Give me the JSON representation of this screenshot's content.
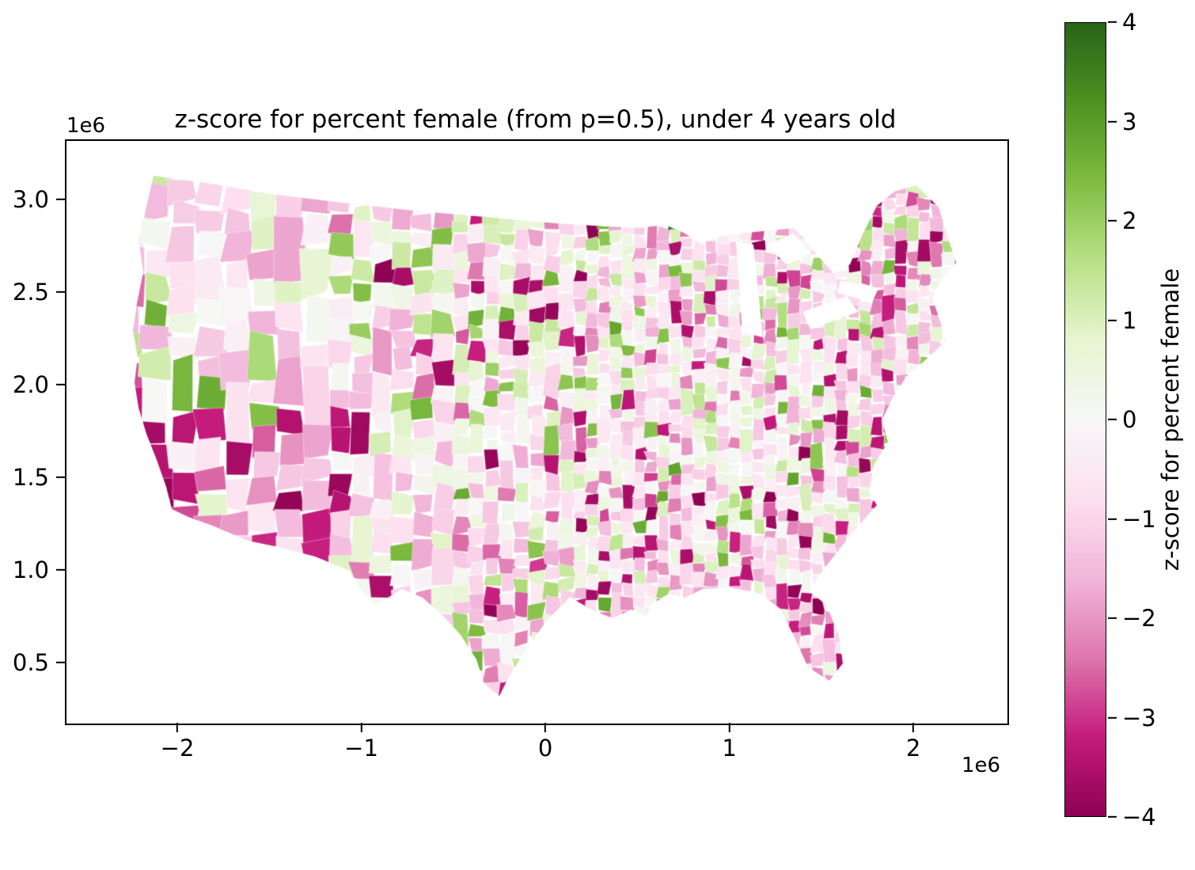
{
  "figure": {
    "title": "z-score for percent female (from p=0.5), under 4 years old",
    "background": "#ffffff"
  },
  "axes": {
    "x_ticks": [
      "−2",
      "−1",
      "0",
      "1",
      "2"
    ],
    "x_tick_values": [
      -2,
      -1,
      0,
      1,
      2
    ],
    "x_offset_label": "1e6",
    "y_ticks": [
      "0.5",
      "1.0",
      "1.5",
      "2.0",
      "2.5",
      "3.0"
    ],
    "y_tick_values": [
      0.5,
      1.0,
      1.5,
      2.0,
      2.5,
      3.0
    ],
    "y_offset_label": "1e6",
    "xlim_1e6": [
      -2.611,
      2.503
    ],
    "ylim_1e6": [
      0.18,
      3.32
    ]
  },
  "colorbar": {
    "label": "z-score for percent female",
    "ticks": [
      "4",
      "3",
      "2",
      "1",
      "0",
      "−1",
      "−2",
      "−3",
      "−4"
    ],
    "tick_values": [
      4,
      3,
      2,
      1,
      0,
      -1,
      -2,
      -3,
      -4
    ],
    "vmin": -4,
    "vmax": 4
  },
  "chart_data": {
    "type": "heatmap",
    "subtype": "choropleth-map",
    "region": "United States counties (Albers-projected, contiguous US)",
    "title": "z-score for percent female (from p=0.5), under 4 years old",
    "colorbar_label": "z-score for percent female",
    "value_range": [
      -4,
      4
    ],
    "colormap": "PiYG",
    "colormap_stops": [
      "#8e0152",
      "#c51b7d",
      "#de77ae",
      "#f1b6da",
      "#fde0ef",
      "#f7f7f7",
      "#e6f5d0",
      "#b8e186",
      "#7fbc41",
      "#4d9221",
      "#276419"
    ],
    "x_axis": {
      "tick_values": [
        -2,
        -1,
        0,
        1,
        2
      ],
      "scale_offset": "1e6",
      "range": [
        -2.611,
        2.503
      ]
    },
    "y_axis": {
      "tick_values": [
        0.5,
        1.0,
        1.5,
        2.0,
        2.5,
        3.0
      ],
      "scale_offset": "1e6",
      "range": [
        0.18,
        3.32
      ]
    },
    "legend_position": "right vertical colorbar",
    "grid": false,
    "description": "County-level choropleth of z-scores for percent female among children under 4. Most counties are pale-to-medium pink (z between 0 and −2.5); dark magenta clusters (z near −4) appear in southern California, Arizona, the Northeast corridor, Florida and scattered metro counties; scattered light and medium green counties (z between +0.5 and +2.5) occur mainly in the plains and rural west."
  }
}
